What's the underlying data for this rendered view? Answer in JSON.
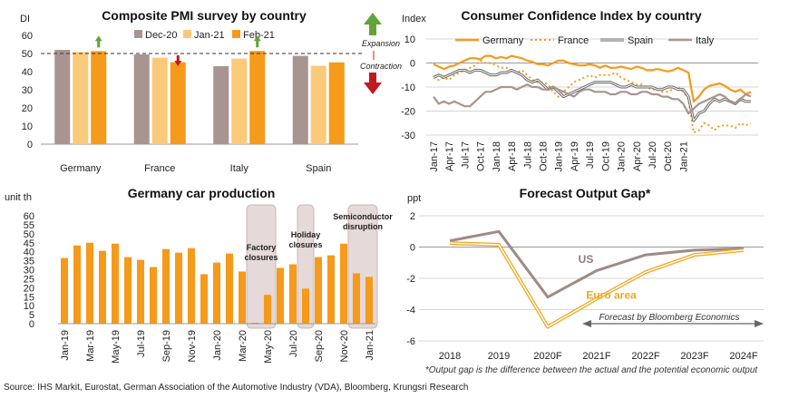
{
  "source": "Source: IHS Markit, Eurostat, German Association of the Automotive Industry (VDA), Bloomberg, Krungsri Research",
  "chart_data": [
    {
      "type": "bar",
      "title": "Composite PMI survey by country",
      "ylabel": "DI",
      "ylim": [
        0,
        60
      ],
      "yticks": [
        0,
        10,
        20,
        30,
        40,
        50,
        60
      ],
      "categories": [
        "Germany",
        "France",
        "Italy",
        "Spain"
      ],
      "series": [
        {
          "name": "Dec-20",
          "color": "#a89490",
          "values": [
            52.0,
            49.5,
            43.0,
            48.7
          ]
        },
        {
          "name": "Jan-21",
          "color": "#fbc97a",
          "values": [
            50.8,
            47.7,
            47.2,
            43.2
          ]
        },
        {
          "name": "Feb-21",
          "color": "#f59a1a",
          "values": [
            51.3,
            45.2,
            51.4,
            45.1
          ]
        }
      ],
      "threshold": 50,
      "annotations": {
        "expansion": "Expansion",
        "contraction": "Contraction"
      },
      "arrows": [
        {
          "category": "Germany",
          "direction": "up",
          "color": "#62a43a"
        },
        {
          "category": "France",
          "direction": "down",
          "color": "#c0191f"
        },
        {
          "category": "Italy",
          "direction": "up",
          "color": "#62a43a"
        }
      ]
    },
    {
      "type": "line",
      "title": "Consumer Confidence Index by country",
      "ylabel": "Index",
      "ylim": [
        -30,
        10
      ],
      "yticks": [
        10,
        0,
        -10,
        -20,
        -30
      ],
      "x_ticks": [
        "Jan-17",
        "Apr-17",
        "Jul-17",
        "Oct-17",
        "Jan-18",
        "Apr-18",
        "Jul-18",
        "Oct-18",
        "Jan-19",
        "Apr-19",
        "Jul-19",
        "Oct-19",
        "Jan-20",
        "Apr-20",
        "Jul-20",
        "Oct-20",
        "Jan-21"
      ],
      "series": [
        {
          "name": "Germany",
          "color": "#f59a1a",
          "style": "solid",
          "values": [
            -0.5,
            -1.5,
            -2.5,
            -1.5,
            -1,
            0,
            1,
            2,
            2,
            1.5,
            3,
            3,
            2,
            2.5,
            2,
            3,
            2.5,
            2,
            1,
            0.5,
            -0.5,
            -0.5,
            -1,
            0,
            1,
            1,
            0,
            -0.5,
            -1,
            -1,
            -0.5,
            -1,
            -2,
            -1,
            -2,
            -2,
            -1.5,
            -2,
            -2.5,
            -1.5,
            -2,
            -3,
            -3,
            -2.5,
            -3,
            -3.5,
            -3,
            -2,
            -3,
            -4,
            -16,
            -14,
            -11,
            -9.5,
            -9,
            -8.5,
            -9.5,
            -11,
            -12,
            -11,
            -13,
            -12
          ]
        },
        {
          "name": "France",
          "color": "#f59a1a",
          "style": "dotted",
          "values": [
            -6,
            -7,
            -6,
            -7,
            -5,
            -4,
            -3,
            -2,
            -1,
            1,
            0,
            0,
            -1,
            -2,
            -2,
            -3,
            -4,
            -3,
            -5,
            -7,
            -8,
            -8,
            -9,
            -12,
            -14,
            -12,
            -10,
            -8,
            -7,
            -6,
            -5,
            -6,
            -5,
            -5,
            -5,
            -4,
            -6,
            -7,
            -8,
            -9,
            -9,
            -10,
            -11,
            -11,
            -12,
            -12,
            -11,
            -10,
            -12,
            -15,
            -29,
            -28,
            -25,
            -26,
            -28,
            -26,
            -26,
            -26,
            -27,
            -25,
            -26,
            -25
          ]
        },
        {
          "name": "Spain",
          "color": "#666666",
          "style": "double",
          "values": [
            -6,
            -5,
            -6,
            -5,
            -4,
            -3,
            -3,
            -4,
            -3,
            -3,
            -4,
            -5,
            -5,
            -4,
            -4,
            -3,
            -4,
            -5,
            -7,
            -8,
            -7,
            -9,
            -11,
            -10,
            -12,
            -14,
            -13,
            -12,
            -11,
            -10,
            -9,
            -8,
            -8,
            -8,
            -8,
            -9,
            -10,
            -10,
            -9,
            -10,
            -10,
            -10,
            -10,
            -11,
            -11,
            -10,
            -10,
            -11,
            -11,
            -14,
            -24,
            -21,
            -20,
            -17,
            -15,
            -16,
            -15,
            -16,
            -17,
            -15,
            -16,
            -16
          ]
        },
        {
          "name": "Italy",
          "color": "#a89490",
          "style": "solid",
          "values": [
            -14,
            -17,
            -16,
            -17,
            -16,
            -17,
            -18,
            -18,
            -16,
            -14,
            -12,
            -12,
            -11,
            -10,
            -10,
            -10,
            -11,
            -10,
            -9,
            -10,
            -10,
            -11,
            -11,
            -10,
            -11,
            -12,
            -13,
            -14,
            -12,
            -11,
            -11,
            -12,
            -12,
            -12,
            -13,
            -13,
            -12,
            -12,
            -13,
            -13,
            -12,
            -12,
            -13,
            -13,
            -14,
            -14,
            -15,
            -15,
            -17,
            -21,
            -19,
            -17,
            -16,
            -15,
            -14,
            -13,
            -14,
            -16,
            -17,
            -15,
            -13,
            -14
          ]
        }
      ]
    },
    {
      "type": "bar",
      "title": "Germany car production",
      "ylabel": "unit th",
      "ylim": [
        0,
        60
      ],
      "yticks": [
        0,
        5,
        10,
        15,
        20,
        25,
        30,
        35,
        40,
        45,
        50,
        55,
        60
      ],
      "color": "#f59a1a",
      "x_ticks": [
        "Jan-19",
        "Mar-19",
        "May-19",
        "Jul-19",
        "Sep-19",
        "Nov-19",
        "Jan-20",
        "Mar-20",
        "May-20",
        "Jul-20",
        "Sep-20",
        "Nov-20",
        "Jan-21"
      ],
      "values": [
        36.5,
        43.5,
        45,
        40.5,
        44.5,
        37,
        35.5,
        31.5,
        41.5,
        39.5,
        42,
        27.5,
        34,
        39,
        29,
        0.5,
        16,
        31,
        33,
        19.5,
        37,
        38,
        44.5,
        28,
        26
      ],
      "highlights": [
        {
          "label": "Factory closures",
          "from": 15,
          "to": 16
        },
        {
          "label": "Holiday closures",
          "from": 19,
          "to": 19
        },
        {
          "label": "Semiconductor disruption",
          "from": 23,
          "to": 24
        }
      ]
    },
    {
      "type": "line",
      "title": "Forecast Output Gap*",
      "ylabel": "ppt",
      "ylim": [
        -6,
        2
      ],
      "yticks": [
        2,
        0,
        -2,
        -4,
        -6
      ],
      "categories": [
        "2018",
        "2019",
        "2020F",
        "2021F",
        "2022F",
        "2023F",
        "2024F"
      ],
      "series": [
        {
          "name": "US",
          "color": "#a08a86",
          "values": [
            0.4,
            1.0,
            -3.2,
            -1.5,
            -0.5,
            -0.2,
            -0.1
          ]
        },
        {
          "name": "Euro area",
          "color": "#f0a822",
          "values": [
            0.25,
            0.15,
            -5.1,
            -3.3,
            -1.6,
            -0.5,
            -0.2
          ]
        }
      ],
      "forecast_label": "Forecast by Bloomberg Economics",
      "footnote": "*Output gap is the difference between the actual and the potential economic output"
    }
  ]
}
